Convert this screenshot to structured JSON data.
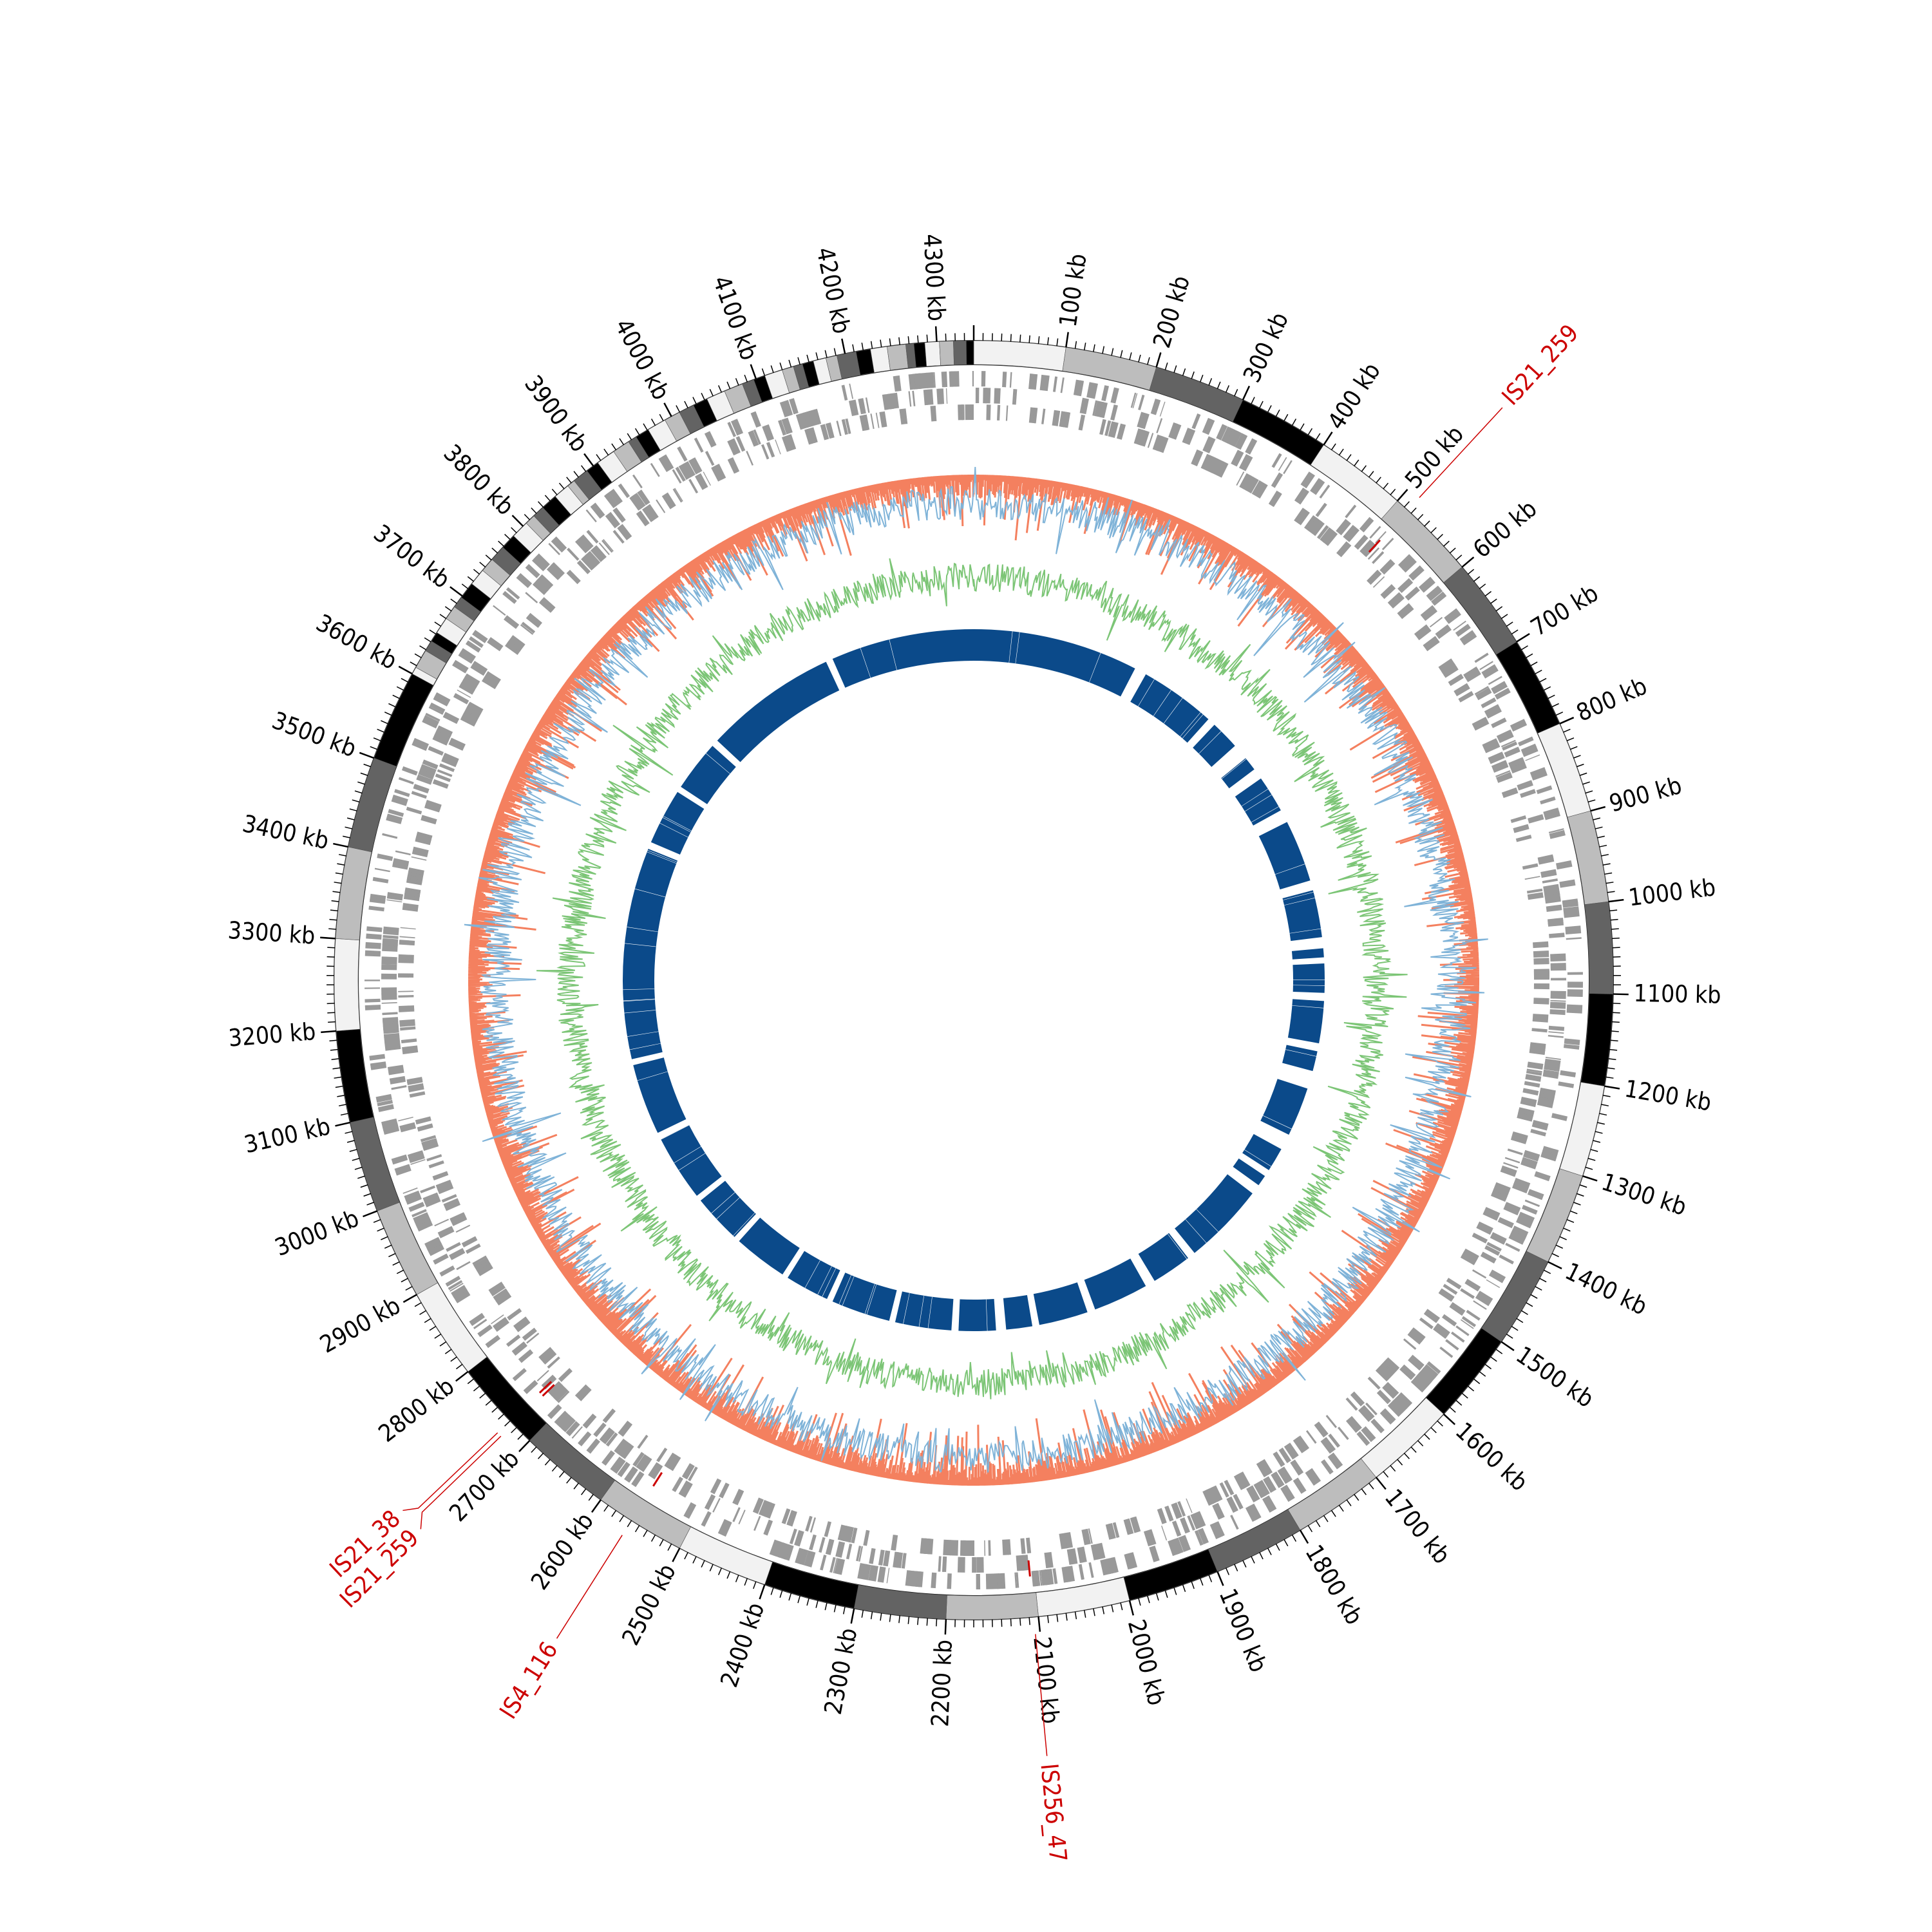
{
  "genome": {
    "length_kb": 4340,
    "units": "kb"
  },
  "tick_labels": [
    "100 kb",
    "200 kb",
    "300 kb",
    "400 kb",
    "500 kb",
    "600 kb",
    "700 kb",
    "800 kb",
    "900 kb",
    "1000 kb",
    "1100 kb",
    "1200 kb",
    "1300 kb",
    "1400 kb",
    "1500 kb",
    "1600 kb",
    "1700 kb",
    "1800 kb",
    "1900 kb",
    "2000 kb",
    "2100 kb",
    "2200 kb",
    "2300 kb",
    "2400 kb",
    "2500 kb",
    "2600 kb",
    "2700 kb",
    "2800 kb",
    "2900 kb",
    "3000 kb",
    "3100 kb",
    "3200 kb",
    "3300 kb",
    "3400 kb",
    "3500 kb",
    "3600 kb",
    "3700 kb",
    "3800 kb",
    "3900 kb",
    "4000 kb",
    "4100 kb",
    "4200 kb",
    "4300 kb"
  ],
  "tick_positions_kb": [
    100,
    200,
    300,
    400,
    500,
    600,
    700,
    800,
    900,
    1000,
    1100,
    1200,
    1300,
    1400,
    1500,
    1600,
    1700,
    1800,
    1900,
    2000,
    2100,
    2200,
    2300,
    2400,
    2500,
    2600,
    2700,
    2800,
    2900,
    3000,
    3100,
    3200,
    3300,
    3400,
    3500,
    3600,
    3700,
    3800,
    3900,
    4000,
    4100,
    4200,
    4300
  ],
  "is_elements": [
    {
      "label": "IS21_259",
      "position_kb": 515
    },
    {
      "label": "IS256_47",
      "position_kb": 2105
    },
    {
      "label": "IS4_116",
      "position_kb": 2560
    },
    {
      "label": "IS21_259",
      "position_kb": 2725
    },
    {
      "label": "IS21_38",
      "position_kb": 2730
    }
  ],
  "colors": {
    "is_label": "#cc0000",
    "features": "#999999",
    "track_salmon": "#f4805f",
    "track_blue_light": "#7fb3d8",
    "track_green": "#7cc576",
    "track_blue_dark": "#0b4a8a",
    "ideogram_shades": [
      "#f2f2f2",
      "#bdbdbd",
      "#636363",
      "#000000"
    ]
  },
  "dense_region_start_kb": 3560
}
